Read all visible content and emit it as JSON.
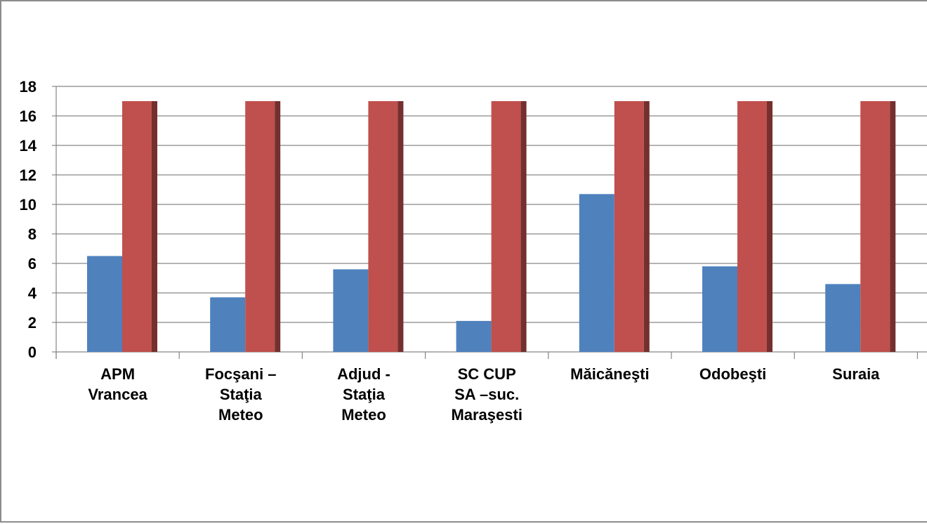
{
  "chart_data": {
    "type": "bar",
    "categories": [
      [
        "APM",
        "Vrancea"
      ],
      [
        "Focşani –",
        "Staţia",
        "Meteo"
      ],
      [
        "Adjud -",
        "Staţia",
        "Meteo"
      ],
      [
        "SC  CUP",
        "SA –suc.",
        "Maraşesti"
      ],
      [
        "Măicăneşti"
      ],
      [
        "Odobeşti"
      ],
      [
        "Suraia"
      ]
    ],
    "series": [
      {
        "values": [
          6.5,
          3.7,
          5.6,
          2.1,
          10.7,
          5.8,
          4.6
        ],
        "color": "#4f81bd"
      },
      {
        "values": [
          17,
          17,
          17,
          17,
          17,
          17,
          17
        ],
        "color": "#c0504d"
      }
    ],
    "ylim": [
      0,
      18
    ],
    "yticks": [
      "0",
      "2",
      "4",
      "6",
      "8",
      "10",
      "12",
      "14",
      "16",
      "18"
    ],
    "title": "",
    "xlabel": "",
    "ylabel": "",
    "grid": true,
    "legend": "none"
  }
}
